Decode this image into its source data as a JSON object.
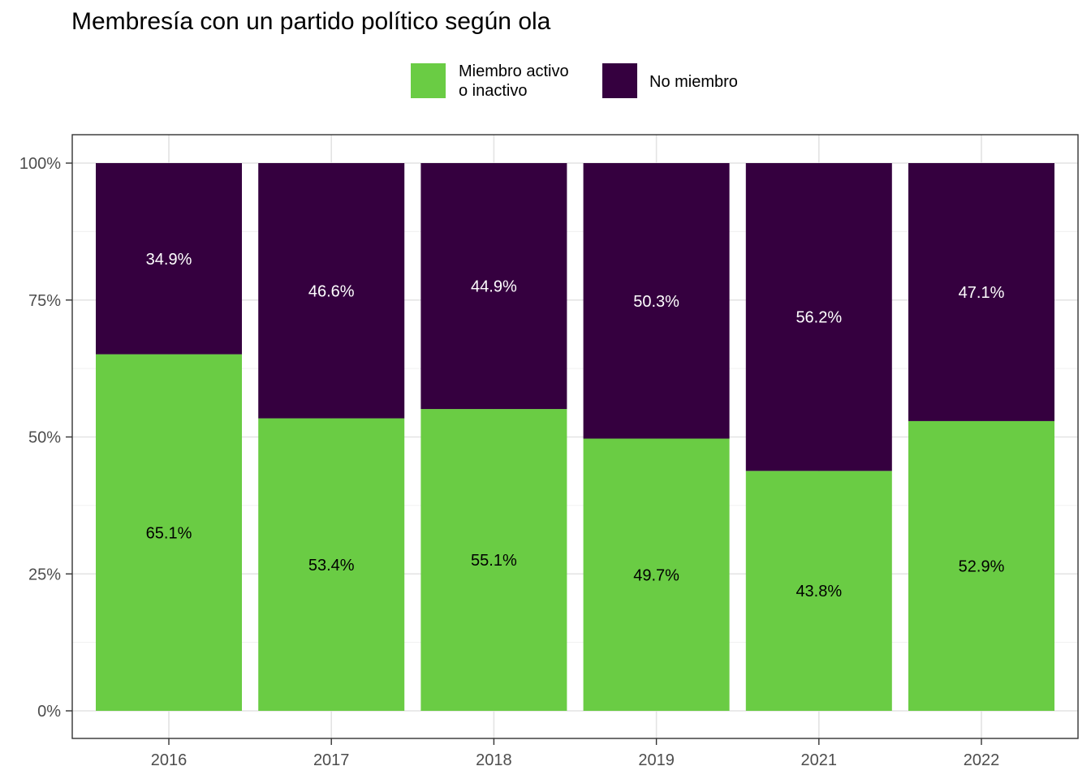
{
  "chart_data": {
    "type": "bar",
    "stacked": true,
    "title": "Membresía con un partido político según ola",
    "xlabel": "",
    "ylabel": "",
    "categories": [
      "2016",
      "2017",
      "2018",
      "2019",
      "2021",
      "2022"
    ],
    "series": [
      {
        "name": "Miembro activo\n o inactivo",
        "color": "#6acc44",
        "label_color": "#000000",
        "values": [
          65.1,
          53.4,
          55.1,
          49.7,
          43.8,
          52.9
        ],
        "labels": [
          "65.1%",
          "53.4%",
          "55.1%",
          "49.7%",
          "43.8%",
          "52.9%"
        ]
      },
      {
        "name": "No miembro",
        "color": "#35003f",
        "label_color": "#ffffff",
        "values": [
          34.9,
          46.6,
          44.9,
          50.3,
          56.2,
          47.1
        ],
        "labels": [
          "34.9%",
          "46.6%",
          "44.9%",
          "50.3%",
          "56.2%",
          "47.1%"
        ]
      }
    ],
    "ylim": [
      0,
      100
    ],
    "yticks": [
      0,
      25,
      50,
      75,
      100
    ],
    "ytick_labels": [
      "0%",
      "25%",
      "50%",
      "75%",
      "100%"
    ],
    "grid": true,
    "legend_position": "top"
  }
}
